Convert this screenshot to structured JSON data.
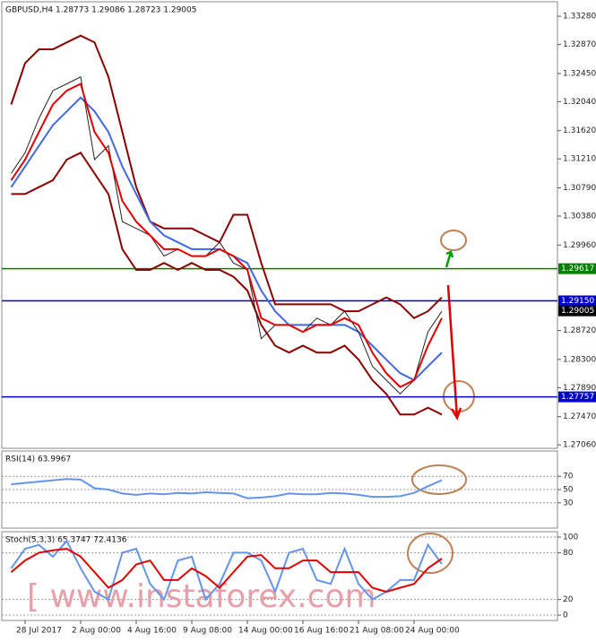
{
  "chart_data": [
    {
      "type": "line",
      "title": "GBPUSD,H4 1.28773 1.29086 1.28723 1.29005",
      "categories": [
        null,
        "28 Jul 2017",
        null,
        null,
        null,
        "2 Aug 00:00",
        null,
        null,
        null,
        "4 Aug 16:00",
        null,
        null,
        null,
        "9 Aug 08:00",
        null,
        null,
        null,
        "14 Aug 00:00",
        null,
        null,
        null,
        "16 Aug 16:00",
        null,
        null,
        null,
        "21 Aug 08:00",
        null,
        null,
        null,
        "24 Aug 00:00",
        null,
        null
      ],
      "series": [
        {
          "color": "#8b0000",
          "values": [
            1.32,
            1.326,
            1.328,
            1.328,
            1.329,
            1.33,
            1.329,
            1.324,
            1.316,
            1.308,
            1.303,
            1.302,
            1.302,
            1.302,
            1.301,
            1.3,
            1.304,
            1.304,
            1.297,
            1.291,
            1.291,
            1.291,
            1.291,
            1.291,
            1.29,
            1.29,
            1.291,
            1.292,
            1.291,
            1.289,
            1.29,
            1.292
          ]
        },
        {
          "color": "#8b0000",
          "values": [
            1.307,
            1.307,
            1.308,
            1.309,
            1.312,
            1.313,
            1.31,
            1.307,
            1.299,
            1.296,
            1.296,
            1.297,
            1.296,
            1.297,
            1.296,
            1.296,
            1.295,
            1.293,
            1.288,
            1.285,
            1.284,
            1.285,
            1.284,
            1.284,
            1.285,
            1.283,
            1.28,
            1.278,
            1.275,
            1.275,
            1.276,
            1.275
          ]
        },
        {
          "color": "#4169e1",
          "values": [
            1.308,
            1.311,
            1.314,
            1.317,
            1.319,
            1.321,
            1.319,
            1.316,
            1.311,
            1.307,
            1.303,
            1.301,
            1.3,
            1.299,
            1.299,
            1.299,
            1.298,
            1.297,
            1.293,
            1.29,
            1.288,
            1.288,
            1.288,
            1.288,
            1.288,
            1.287,
            1.285,
            1.283,
            1.281,
            1.28,
            1.282,
            1.284
          ]
        },
        {
          "color": "#222222",
          "values": [
            1.31,
            1.313,
            1.318,
            1.322,
            1.323,
            1.324,
            1.312,
            1.314,
            1.303,
            1.302,
            1.301,
            1.298,
            1.299,
            1.298,
            1.298,
            1.3,
            1.297,
            1.296,
            1.286,
            1.288,
            1.288,
            1.287,
            1.289,
            1.288,
            1.29,
            1.287,
            1.282,
            1.28,
            1.278,
            1.28,
            1.287,
            1.29
          ]
        },
        {
          "color": "#e00000",
          "values": [
            1.309,
            1.312,
            1.316,
            1.32,
            1.322,
            1.323,
            1.316,
            1.313,
            1.306,
            1.303,
            1.301,
            1.299,
            1.299,
            1.298,
            1.298,
            1.299,
            1.298,
            1.296,
            1.289,
            1.288,
            1.288,
            1.287,
            1.288,
            1.288,
            1.289,
            1.288,
            1.284,
            1.281,
            1.279,
            1.28,
            1.285,
            1.289
          ]
        }
      ],
      "levels": [
        {
          "value": 1.29617,
          "color": "#008000"
        },
        {
          "value": 1.2915,
          "label": "1.29150",
          "color": "#0000cd"
        },
        {
          "value": 1.29005,
          "color": "#000000"
        },
        {
          "value": 1.27757,
          "color": "#0000cd"
        }
      ],
      "ylim": [
        1.2701,
        1.3349
      ],
      "yticks": [
        {
          "value": 1.3328,
          "label": "1.33280"
        },
        {
          "value": 1.3287,
          "label": "1.32870"
        },
        {
          "value": 1.3245,
          "label": "1.32450"
        },
        {
          "value": 1.3204,
          "label": "1.32040"
        },
        {
          "value": 1.3162,
          "label": "1.31620"
        },
        {
          "value": 1.3121,
          "label": "1.31210"
        },
        {
          "value": 1.3079,
          "label": "1.30790"
        },
        {
          "value": 1.3038,
          "label": "1.30380"
        },
        {
          "value": 1.2996,
          "label": "1.29960"
        },
        {
          "value": 1.2872,
          "label": "1.28720"
        },
        {
          "value": 1.283,
          "label": "1.28300"
        },
        {
          "value": 1.2789,
          "label": "1.27890"
        },
        {
          "value": 1.2747,
          "label": "1.27470"
        },
        {
          "value": 1.2706,
          "label": "1.27060"
        }
      ]
    },
    {
      "type": "line",
      "title": "RSI(14) 63.9967",
      "ylim": [
        0,
        100
      ],
      "yticks": [
        30,
        50,
        70
      ],
      "series": [
        {
          "color": "#6495ed",
          "values": [
            58,
            60,
            62,
            64,
            66,
            65,
            52,
            50,
            44,
            42,
            44,
            43,
            45,
            44,
            46,
            45,
            44,
            37,
            38,
            40,
            44,
            43,
            43,
            45,
            44,
            42,
            39,
            39,
            40,
            45,
            55,
            64
          ]
        }
      ]
    },
    {
      "type": "line",
      "title": "Stoch(5,3,3) 65.3747 72.4136",
      "ylim": [
        0,
        100
      ],
      "yticks": [
        0,
        20,
        80,
        100
      ],
      "series": [
        {
          "color": "#6495ed",
          "values": [
            60,
            85,
            90,
            75,
            95,
            60,
            30,
            20,
            80,
            85,
            40,
            20,
            70,
            75,
            20,
            40,
            80,
            80,
            70,
            30,
            80,
            85,
            45,
            40,
            85,
            40,
            20,
            30,
            45,
            45,
            90,
            65.37
          ]
        },
        {
          "color": "#e00000",
          "values": [
            55,
            70,
            80,
            83,
            85,
            75,
            55,
            35,
            45,
            65,
            70,
            45,
            45,
            60,
            50,
            35,
            55,
            75,
            77,
            60,
            60,
            70,
            70,
            55,
            55,
            55,
            35,
            30,
            35,
            40,
            60,
            72.41
          ]
        }
      ]
    }
  ],
  "watermark": "[ www.instaforex.com"
}
